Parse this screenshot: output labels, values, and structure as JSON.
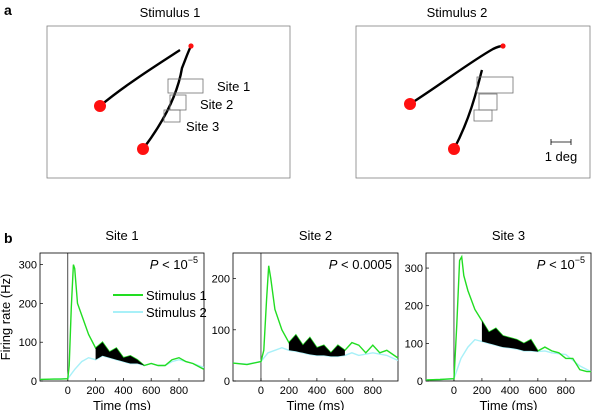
{
  "panel_a": {
    "label": "a",
    "stimuli": [
      {
        "title": "Stimulus 1",
        "sites": [
          "Site 1",
          "Site 2",
          "Site 3"
        ]
      },
      {
        "title": "Stimulus 2",
        "scale_bar_label": "1 deg"
      }
    ]
  },
  "panel_b": {
    "label": "b",
    "legend": [
      "Stimulus 1",
      "Stimulus 2"
    ]
  },
  "chart_data": [
    {
      "type": "line",
      "title": "Site 1",
      "xlabel": "Time (ms)",
      "ylabel": "Firing rate (Hz)",
      "xlim": [
        -200,
        980
      ],
      "ylim": [
        0,
        330
      ],
      "xticks": [
        0,
        200,
        400,
        600,
        800
      ],
      "yticks": [
        0,
        100,
        200,
        300
      ],
      "p_value": {
        "prefix": "P",
        "op": " < ",
        "value": "10",
        "sup": "−5"
      },
      "series": [
        {
          "name": "Stimulus 1",
          "color": "#22dd22",
          "x": [
            -200,
            -100,
            -50,
            0,
            10,
            25,
            40,
            50,
            70,
            100,
            150,
            200,
            250,
            300,
            350,
            400,
            450,
            500,
            550,
            600,
            650,
            700,
            750,
            800,
            850,
            900,
            980
          ],
          "y": [
            4,
            5,
            5,
            6,
            40,
            190,
            300,
            290,
            200,
            170,
            120,
            85,
            100,
            75,
            85,
            60,
            65,
            55,
            40,
            45,
            40,
            40,
            55,
            60,
            50,
            45,
            30
          ]
        },
        {
          "name": "Stimulus 2",
          "color": "#a8f0f8",
          "x": [
            -200,
            -100,
            0,
            50,
            100,
            150,
            200,
            250,
            300,
            350,
            400,
            450,
            500,
            550,
            600,
            650,
            700,
            750,
            800,
            900,
            980
          ],
          "y": [
            4,
            5,
            6,
            30,
            50,
            60,
            55,
            65,
            60,
            55,
            50,
            45,
            45,
            40,
            45,
            40,
            40,
            50,
            55,
            45,
            35
          ]
        }
      ]
    },
    {
      "type": "line",
      "title": "Site 2",
      "xlabel": "Time (ms)",
      "ylabel": "",
      "xlim": [
        -200,
        980
      ],
      "ylim": [
        0,
        250
      ],
      "xticks": [
        0,
        200,
        400,
        600,
        800
      ],
      "yticks": [
        0,
        100,
        200
      ],
      "p_value": {
        "prefix": "P",
        "op": " < ",
        "value": "0.0005",
        "sup": ""
      },
      "series": [
        {
          "name": "Stimulus 1",
          "color": "#22dd22",
          "x": [
            -200,
            -100,
            0,
            20,
            40,
            55,
            70,
            100,
            150,
            200,
            250,
            300,
            350,
            400,
            450,
            500,
            550,
            600,
            650,
            700,
            750,
            800,
            850,
            900,
            980
          ],
          "y": [
            35,
            32,
            38,
            60,
            160,
            225,
            200,
            140,
            100,
            75,
            90,
            70,
            85,
            65,
            70,
            55,
            70,
            60,
            75,
            70,
            55,
            70,
            55,
            60,
            45
          ]
        },
        {
          "name": "Stimulus 2",
          "color": "#a8f0f8",
          "x": [
            -200,
            -100,
            0,
            50,
            100,
            150,
            200,
            250,
            300,
            350,
            400,
            450,
            500,
            550,
            600,
            650,
            700,
            800,
            900,
            980
          ],
          "y": [
            35,
            33,
            38,
            55,
            60,
            65,
            60,
            58,
            55,
            52,
            50,
            50,
            48,
            48,
            50,
            55,
            50,
            55,
            50,
            40
          ]
        }
      ]
    },
    {
      "type": "line",
      "title": "Site 3",
      "xlabel": "Time (ms)",
      "ylabel": "",
      "xlim": [
        -200,
        980
      ],
      "ylim": [
        0,
        340
      ],
      "xticks": [
        0,
        200,
        400,
        600,
        800
      ],
      "yticks": [
        0,
        100,
        200,
        300
      ],
      "p_value": {
        "prefix": "P",
        "op": " < ",
        "value": "10",
        "sup": "−5"
      },
      "series": [
        {
          "name": "Stimulus 1",
          "color": "#22dd22",
          "x": [
            -200,
            -100,
            -50,
            0,
            20,
            40,
            55,
            70,
            100,
            150,
            200,
            250,
            300,
            350,
            400,
            450,
            500,
            550,
            600,
            650,
            700,
            750,
            800,
            850,
            900,
            950,
            980
          ],
          "y": [
            3,
            4,
            5,
            6,
            150,
            320,
            330,
            280,
            240,
            190,
            160,
            130,
            140,
            120,
            115,
            110,
            100,
            110,
            80,
            90,
            80,
            75,
            60,
            60,
            30,
            25,
            25
          ]
        },
        {
          "name": "Stimulus 2",
          "color": "#a8f0f8",
          "x": [
            -200,
            -100,
            0,
            50,
            100,
            150,
            200,
            250,
            300,
            350,
            400,
            450,
            500,
            550,
            600,
            650,
            700,
            800,
            900,
            980
          ],
          "y": [
            3,
            4,
            6,
            60,
            90,
            110,
            105,
            100,
            95,
            90,
            88,
            85,
            80,
            80,
            78,
            80,
            75,
            70,
            40,
            25
          ]
        }
      ]
    }
  ]
}
